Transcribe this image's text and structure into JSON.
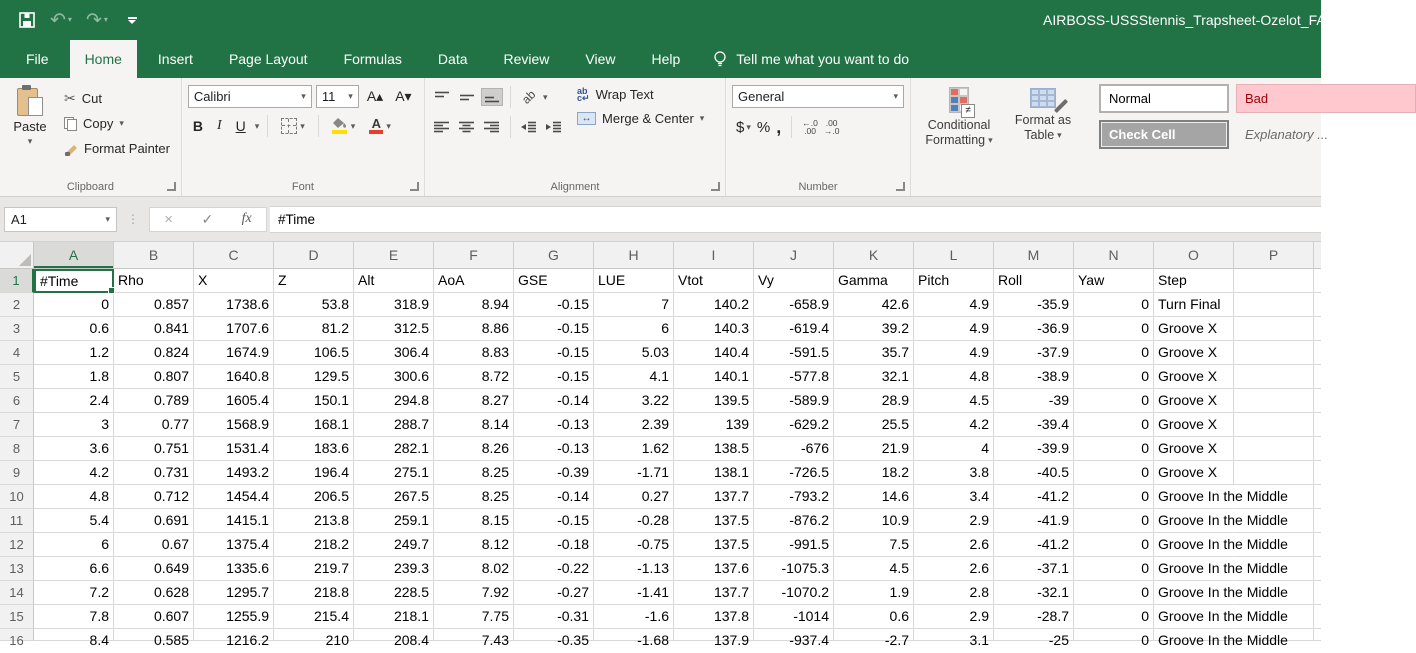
{
  "colors": {
    "accent_green": "#217346",
    "fill_yellow": "#fce100",
    "font_red": "#e53e2d",
    "check_cell_bg": "#a5a5a5",
    "bad_bg": "#ffc7ce",
    "bad_text": "#9c0006"
  },
  "titlebar": {
    "title": "AIRBOSS-USSStennis_Trapsheet-Ozelot_FA"
  },
  "icons": {
    "caret_down": "▾",
    "cut": "✂",
    "undo": "↶",
    "redo": "↷",
    "cancel": "×",
    "check": "✓",
    "fx": "fx",
    "wrap_ab": "ab",
    "wrap_c": "c↵",
    "orientation_ab": "ab",
    "merge_arrows": "↔",
    "not_equal": "≠",
    "font_up": "A▴",
    "font_down": "A▾",
    "font_color_a": "A",
    "inc_dec_top": "←.0",
    "inc_dec_bottom": ".00",
    "dec_dec_top": ".00",
    "dec_dec_bottom": "→.0"
  },
  "tabs": {
    "items": [
      "File",
      "Home",
      "Insert",
      "Page Layout",
      "Formulas",
      "Data",
      "Review",
      "View",
      "Help"
    ],
    "active": "Home",
    "tell_me": "Tell me what you want to do"
  },
  "ribbon": {
    "clipboard": {
      "label": "Clipboard",
      "paste": "Paste",
      "cut": "Cut",
      "copy": "Copy",
      "format_painter": "Format Painter"
    },
    "font": {
      "label": "Font",
      "name": "Calibri",
      "size": "11",
      "bold": "B",
      "italic": "I",
      "underline": "U"
    },
    "alignment": {
      "label": "Alignment",
      "wrap_text": "Wrap Text",
      "merge_center": "Merge & Center"
    },
    "number": {
      "label": "Number",
      "format": "General",
      "currency": "$",
      "percent": "%",
      "comma": ","
    },
    "styles": {
      "conditional_line1": "Conditional",
      "conditional_line2": "Formatting",
      "table_line1": "Format as",
      "table_line2": "Table",
      "normal": "Normal",
      "check_cell": "Check Cell",
      "bad": "Bad",
      "explanatory": "Explanatory ..."
    }
  },
  "formula_bar": {
    "name_box": "A1",
    "value": "#Time"
  },
  "grid": {
    "selected_cell": "A1",
    "selected_column": "A",
    "selected_row": "1",
    "columns": [
      "A",
      "B",
      "C",
      "D",
      "E",
      "F",
      "G",
      "H",
      "I",
      "J",
      "K",
      "L",
      "M",
      "N",
      "O",
      "P"
    ],
    "rows": [
      [
        "#Time",
        "Rho",
        "X",
        "Z",
        "Alt",
        "AoA",
        "GSE",
        "LUE",
        "Vtot",
        "Vy",
        "Gamma",
        "Pitch",
        "Roll",
        "Yaw",
        "Step",
        ""
      ],
      [
        "0",
        "0.857",
        "1738.6",
        "53.8",
        "318.9",
        "8.94",
        "-0.15",
        "7",
        "140.2",
        "-658.9",
        "42.6",
        "4.9",
        "-35.9",
        "0",
        "Turn Final",
        ""
      ],
      [
        "0.6",
        "0.841",
        "1707.6",
        "81.2",
        "312.5",
        "8.86",
        "-0.15",
        "6",
        "140.3",
        "-619.4",
        "39.2",
        "4.9",
        "-36.9",
        "0",
        "Groove X",
        ""
      ],
      [
        "1.2",
        "0.824",
        "1674.9",
        "106.5",
        "306.4",
        "8.83",
        "-0.15",
        "5.03",
        "140.4",
        "-591.5",
        "35.7",
        "4.9",
        "-37.9",
        "0",
        "Groove X",
        ""
      ],
      [
        "1.8",
        "0.807",
        "1640.8",
        "129.5",
        "300.6",
        "8.72",
        "-0.15",
        "4.1",
        "140.1",
        "-577.8",
        "32.1",
        "4.8",
        "-38.9",
        "0",
        "Groove X",
        ""
      ],
      [
        "2.4",
        "0.789",
        "1605.4",
        "150.1",
        "294.8",
        "8.27",
        "-0.14",
        "3.22",
        "139.5",
        "-589.9",
        "28.9",
        "4.5",
        "-39",
        "0",
        "Groove X",
        ""
      ],
      [
        "3",
        "0.77",
        "1568.9",
        "168.1",
        "288.7",
        "8.14",
        "-0.13",
        "2.39",
        "139",
        "-629.2",
        "25.5",
        "4.2",
        "-39.4",
        "0",
        "Groove X",
        ""
      ],
      [
        "3.6",
        "0.751",
        "1531.4",
        "183.6",
        "282.1",
        "8.26",
        "-0.13",
        "1.62",
        "138.5",
        "-676",
        "21.9",
        "4",
        "-39.9",
        "0",
        "Groove X",
        ""
      ],
      [
        "4.2",
        "0.731",
        "1493.2",
        "196.4",
        "275.1",
        "8.25",
        "-0.39",
        "-1.71",
        "138.1",
        "-726.5",
        "18.2",
        "3.8",
        "-40.5",
        "0",
        "Groove X",
        ""
      ],
      [
        "4.8",
        "0.712",
        "1454.4",
        "206.5",
        "267.5",
        "8.25",
        "-0.14",
        "0.27",
        "137.7",
        "-793.2",
        "14.6",
        "3.4",
        "-41.2",
        "0",
        "Groove In the Middle",
        ""
      ],
      [
        "5.4",
        "0.691",
        "1415.1",
        "213.8",
        "259.1",
        "8.15",
        "-0.15",
        "-0.28",
        "137.5",
        "-876.2",
        "10.9",
        "2.9",
        "-41.9",
        "0",
        "Groove In the Middle",
        ""
      ],
      [
        "6",
        "0.67",
        "1375.4",
        "218.2",
        "249.7",
        "8.12",
        "-0.18",
        "-0.75",
        "137.5",
        "-991.5",
        "7.5",
        "2.6",
        "-41.2",
        "0",
        "Groove In the Middle",
        ""
      ],
      [
        "6.6",
        "0.649",
        "1335.6",
        "219.7",
        "239.3",
        "8.02",
        "-0.22",
        "-1.13",
        "137.6",
        "-1075.3",
        "4.5",
        "2.6",
        "-37.1",
        "0",
        "Groove In the Middle",
        ""
      ],
      [
        "7.2",
        "0.628",
        "1295.7",
        "218.8",
        "228.5",
        "7.92",
        "-0.27",
        "-1.41",
        "137.7",
        "-1070.2",
        "1.9",
        "2.8",
        "-32.1",
        "0",
        "Groove In the Middle",
        ""
      ],
      [
        "7.8",
        "0.607",
        "1255.9",
        "215.4",
        "218.1",
        "7.75",
        "-0.31",
        "-1.6",
        "137.8",
        "-1014",
        "0.6",
        "2.9",
        "-28.7",
        "0",
        "Groove In the Middle",
        ""
      ],
      [
        "8.4",
        "0.585",
        "1216.2",
        "210",
        "208.4",
        "7.43",
        "-0.35",
        "-1.68",
        "137.9",
        "-937.4",
        "-2.7",
        "3.1",
        "-25",
        "0",
        "Groove In the Middle",
        ""
      ]
    ]
  }
}
